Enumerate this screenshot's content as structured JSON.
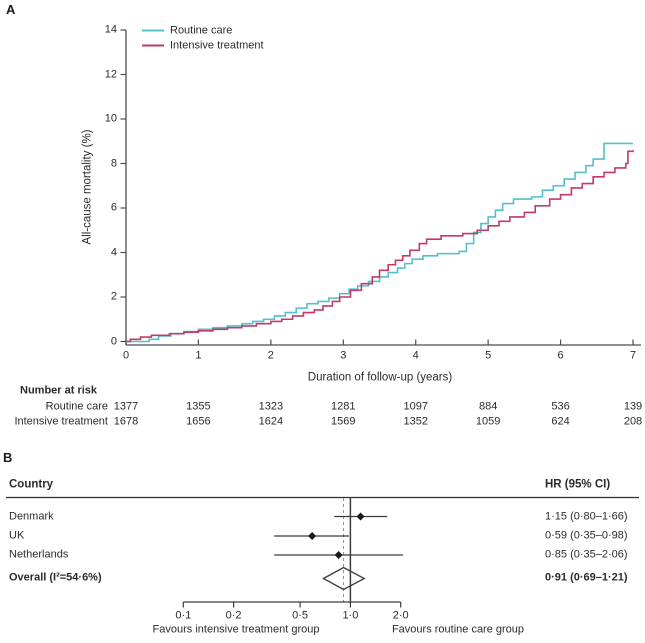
{
  "panel_a_label": "A",
  "panel_b_label": "B",
  "chart_data": [
    {
      "type": "line",
      "step": true,
      "panel": "A",
      "title": "",
      "xlabel": "Duration of follow-up (years)",
      "ylabel": "All-cause mortality (%)",
      "xlim": [
        0,
        7
      ],
      "ylim": [
        0,
        14
      ],
      "x_ticks": [
        0,
        1,
        2,
        3,
        4,
        5,
        6,
        7
      ],
      "y_ticks": [
        0,
        2,
        4,
        6,
        8,
        10,
        12,
        14
      ],
      "grid": false,
      "legend_position": "top-left-inside",
      "series": [
        {
          "name": "Routine care",
          "color": "#53bfcf",
          "points": [
            [
              0,
              0
            ],
            [
              0.32,
              0.1
            ],
            [
              0.45,
              0.25
            ],
            [
              0.62,
              0.35
            ],
            [
              0.8,
              0.45
            ],
            [
              1.0,
              0.55
            ],
            [
              1.2,
              0.62
            ],
            [
              1.4,
              0.7
            ],
            [
              1.6,
              0.8
            ],
            [
              1.75,
              0.9
            ],
            [
              1.9,
              1.0
            ],
            [
              2.05,
              1.15
            ],
            [
              2.2,
              1.3
            ],
            [
              2.35,
              1.5
            ],
            [
              2.5,
              1.7
            ],
            [
              2.65,
              1.8
            ],
            [
              2.8,
              1.95
            ],
            [
              2.95,
              2.15
            ],
            [
              3.08,
              2.35
            ],
            [
              3.2,
              2.5
            ],
            [
              3.35,
              2.7
            ],
            [
              3.5,
              2.9
            ],
            [
              3.62,
              3.1
            ],
            [
              3.75,
              3.3
            ],
            [
              3.85,
              3.5
            ],
            [
              3.95,
              3.7
            ],
            [
              4.1,
              3.85
            ],
            [
              4.3,
              3.95
            ],
            [
              4.6,
              4.05
            ],
            [
              4.7,
              4.4
            ],
            [
              4.8,
              4.9
            ],
            [
              4.9,
              5.3
            ],
            [
              5.0,
              5.6
            ],
            [
              5.1,
              5.9
            ],
            [
              5.2,
              6.2
            ],
            [
              5.35,
              6.4
            ],
            [
              5.6,
              6.5
            ],
            [
              5.75,
              6.8
            ],
            [
              5.9,
              7.0
            ],
            [
              6.05,
              7.3
            ],
            [
              6.2,
              7.6
            ],
            [
              6.35,
              7.9
            ],
            [
              6.45,
              8.2
            ],
            [
              6.6,
              8.9
            ],
            [
              7.0,
              8.9
            ]
          ]
        },
        {
          "name": "Intensive treatment",
          "color": "#c23a65",
          "points": [
            [
              0,
              0
            ],
            [
              0.06,
              0.1
            ],
            [
              0.2,
              0.2
            ],
            [
              0.35,
              0.28
            ],
            [
              0.6,
              0.35
            ],
            [
              0.8,
              0.42
            ],
            [
              1.0,
              0.48
            ],
            [
              1.2,
              0.55
            ],
            [
              1.4,
              0.62
            ],
            [
              1.6,
              0.7
            ],
            [
              1.8,
              0.8
            ],
            [
              2.0,
              0.9
            ],
            [
              2.15,
              1.0
            ],
            [
              2.3,
              1.15
            ],
            [
              2.45,
              1.3
            ],
            [
              2.6,
              1.42
            ],
            [
              2.72,
              1.6
            ],
            [
              2.85,
              1.8
            ],
            [
              2.95,
              2.0
            ],
            [
              3.1,
              2.3
            ],
            [
              3.25,
              2.6
            ],
            [
              3.4,
              2.9
            ],
            [
              3.5,
              3.2
            ],
            [
              3.62,
              3.45
            ],
            [
              3.72,
              3.65
            ],
            [
              3.82,
              3.85
            ],
            [
              3.92,
              4.1
            ],
            [
              4.05,
              4.4
            ],
            [
              4.15,
              4.6
            ],
            [
              4.35,
              4.75
            ],
            [
              4.65,
              4.85
            ],
            [
              4.85,
              5.0
            ],
            [
              5.0,
              5.2
            ],
            [
              5.15,
              5.4
            ],
            [
              5.3,
              5.6
            ],
            [
              5.5,
              5.8
            ],
            [
              5.65,
              6.1
            ],
            [
              5.85,
              6.4
            ],
            [
              6.0,
              6.6
            ],
            [
              6.15,
              6.9
            ],
            [
              6.3,
              7.1
            ],
            [
              6.45,
              7.4
            ],
            [
              6.6,
              7.6
            ],
            [
              6.75,
              7.8
            ],
            [
              6.9,
              8.0
            ],
            [
              6.93,
              8.55
            ],
            [
              7.0,
              8.6
            ]
          ]
        }
      ],
      "number_at_risk": {
        "title": "Number at risk",
        "rows": [
          {
            "label": "Routine care",
            "values": [
              "1377",
              "1355",
              "1323",
              "1281",
              "1097",
              "884",
              "536",
              "139"
            ]
          },
          {
            "label": "Intensive treatment",
            "values": [
              "1678",
              "1656",
              "1624",
              "1569",
              "1352",
              "1059",
              "624",
              "208"
            ]
          }
        ]
      }
    },
    {
      "type": "scatter",
      "layout": "forest",
      "panel": "B",
      "left_header": "Country",
      "right_header": "HR (95% CI)",
      "x_scale": "log",
      "xlim": [
        0.1,
        2.0
      ],
      "x_ticks": [
        0.1,
        0.2,
        0.5,
        1.0,
        2.0
      ],
      "tick_labels": [
        "0·1",
        "0·2",
        "0·5",
        "1·0",
        "2·0"
      ],
      "ref_line": 1.0,
      "dashed_line": 0.91,
      "rows": [
        {
          "label": "Denmark",
          "hr": 1.15,
          "ci": [
            0.8,
            1.66
          ],
          "text": "1·15 (0·80–1·66)",
          "overall": false
        },
        {
          "label": "UK",
          "hr": 0.59,
          "ci": [
            0.35,
            0.98
          ],
          "text": "0·59 (0·35–0·98)",
          "overall": false
        },
        {
          "label": "Netherlands",
          "hr": 0.85,
          "ci": [
            0.35,
            2.06
          ],
          "text": "0·85 (0·35–2·06)",
          "overall": false
        },
        {
          "label": "Overall (I²=54·6%)",
          "hr": 0.91,
          "ci": [
            0.69,
            1.21
          ],
          "text": "0·91 (0·69–1·21)",
          "overall": true
        }
      ],
      "footer_left": "Favours intensive treatment group",
      "footer_right": "Favours routine care group"
    }
  ]
}
